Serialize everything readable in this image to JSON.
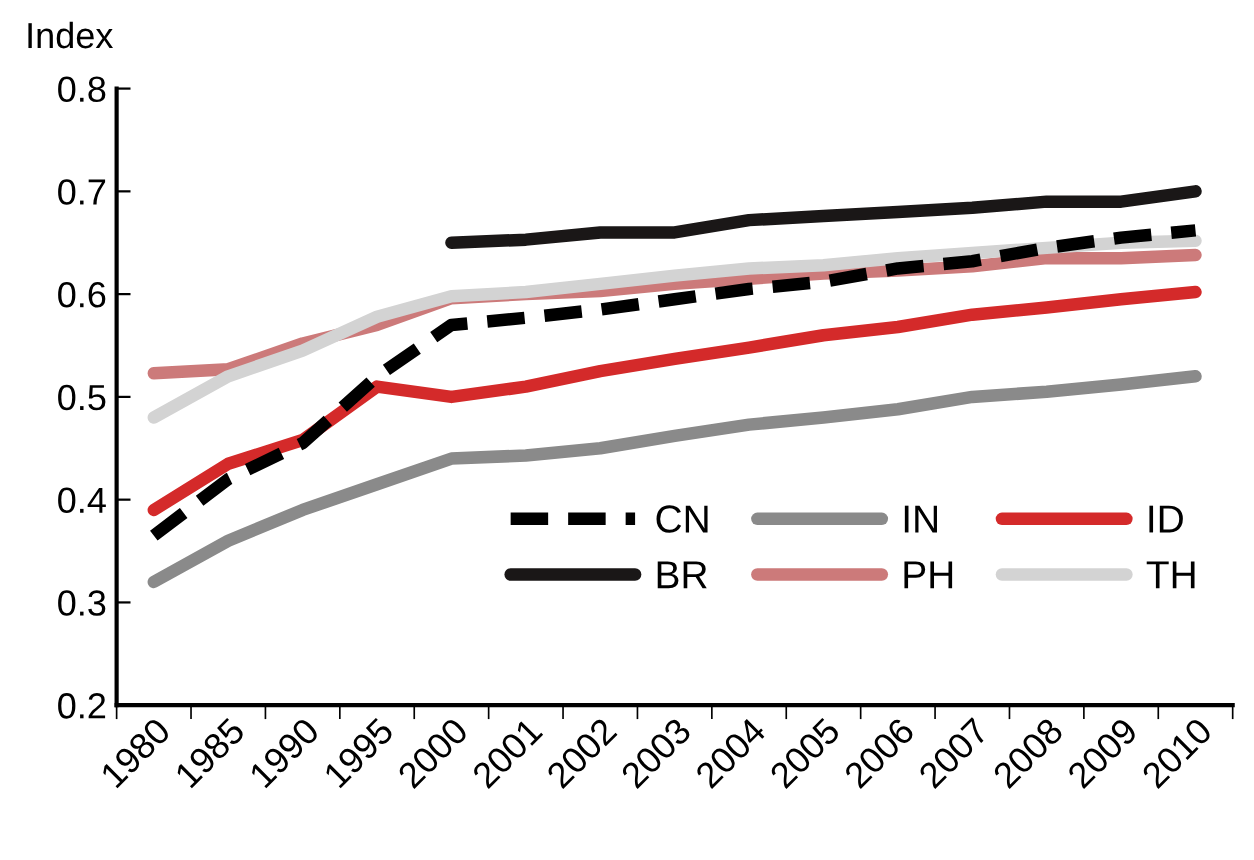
{
  "chart_data": {
    "type": "line",
    "ylabel": "Index",
    "categories": [
      "1980",
      "1985",
      "1990",
      "1995",
      "2000",
      "2001",
      "2002",
      "2003",
      "2004",
      "2005",
      "2006",
      "2007",
      "2008",
      "2009",
      "2010"
    ],
    "series": [
      {
        "name": "CN",
        "color": "#000000",
        "line_style": "dashed",
        "values": [
          0.365,
          0.42,
          0.455,
          0.52,
          0.57,
          0.577,
          0.585,
          0.595,
          0.605,
          0.612,
          0.625,
          0.632,
          0.645,
          0.655,
          0.662
        ]
      },
      {
        "name": "IN",
        "color": "#8a8a8a",
        "values": [
          0.32,
          0.36,
          0.39,
          0.415,
          0.44,
          0.443,
          0.45,
          0.462,
          0.473,
          0.48,
          0.488,
          0.5,
          0.505,
          0.512,
          0.52
        ]
      },
      {
        "name": "ID",
        "color": "#d42a2a",
        "values": [
          0.39,
          0.435,
          0.458,
          0.51,
          0.5,
          0.51,
          0.525,
          0.537,
          0.548,
          0.56,
          0.568,
          0.58,
          0.587,
          0.595,
          0.602
        ]
      },
      {
        "name": "BR",
        "color": "#1a1717",
        "values": [
          null,
          null,
          null,
          null,
          0.65,
          0.653,
          0.66,
          0.66,
          0.672,
          0.676,
          0.68,
          0.684,
          0.69,
          0.69,
          0.7
        ]
      },
      {
        "name": "PH",
        "color": "#cc7a7a",
        "values": [
          0.523,
          0.527,
          0.552,
          0.57,
          0.596,
          0.6,
          0.603,
          0.61,
          0.615,
          0.62,
          0.623,
          0.627,
          0.635,
          0.635,
          0.638
        ]
      },
      {
        "name": "TH",
        "color": "#d3d3d3",
        "values": [
          0.48,
          0.52,
          0.545,
          0.578,
          0.598,
          0.602,
          0.61,
          0.618,
          0.625,
          0.628,
          0.635,
          0.64,
          0.645,
          0.65,
          0.652
        ]
      }
    ],
    "ylim": [
      0.2,
      0.8
    ],
    "yticks": [
      {
        "value": 0.2,
        "label": "0.2"
      },
      {
        "value": 0.3,
        "label": "0.3"
      },
      {
        "value": 0.4,
        "label": "0.4"
      },
      {
        "value": 0.5,
        "label": "0.5"
      },
      {
        "value": 0.6,
        "label": "0.6"
      },
      {
        "value": 0.7,
        "label": "0.7"
      },
      {
        "value": 0.8,
        "label": "0.8"
      }
    ],
    "grid": false,
    "legend": "bottom right",
    "marker": "none",
    "line_style": "solid"
  }
}
